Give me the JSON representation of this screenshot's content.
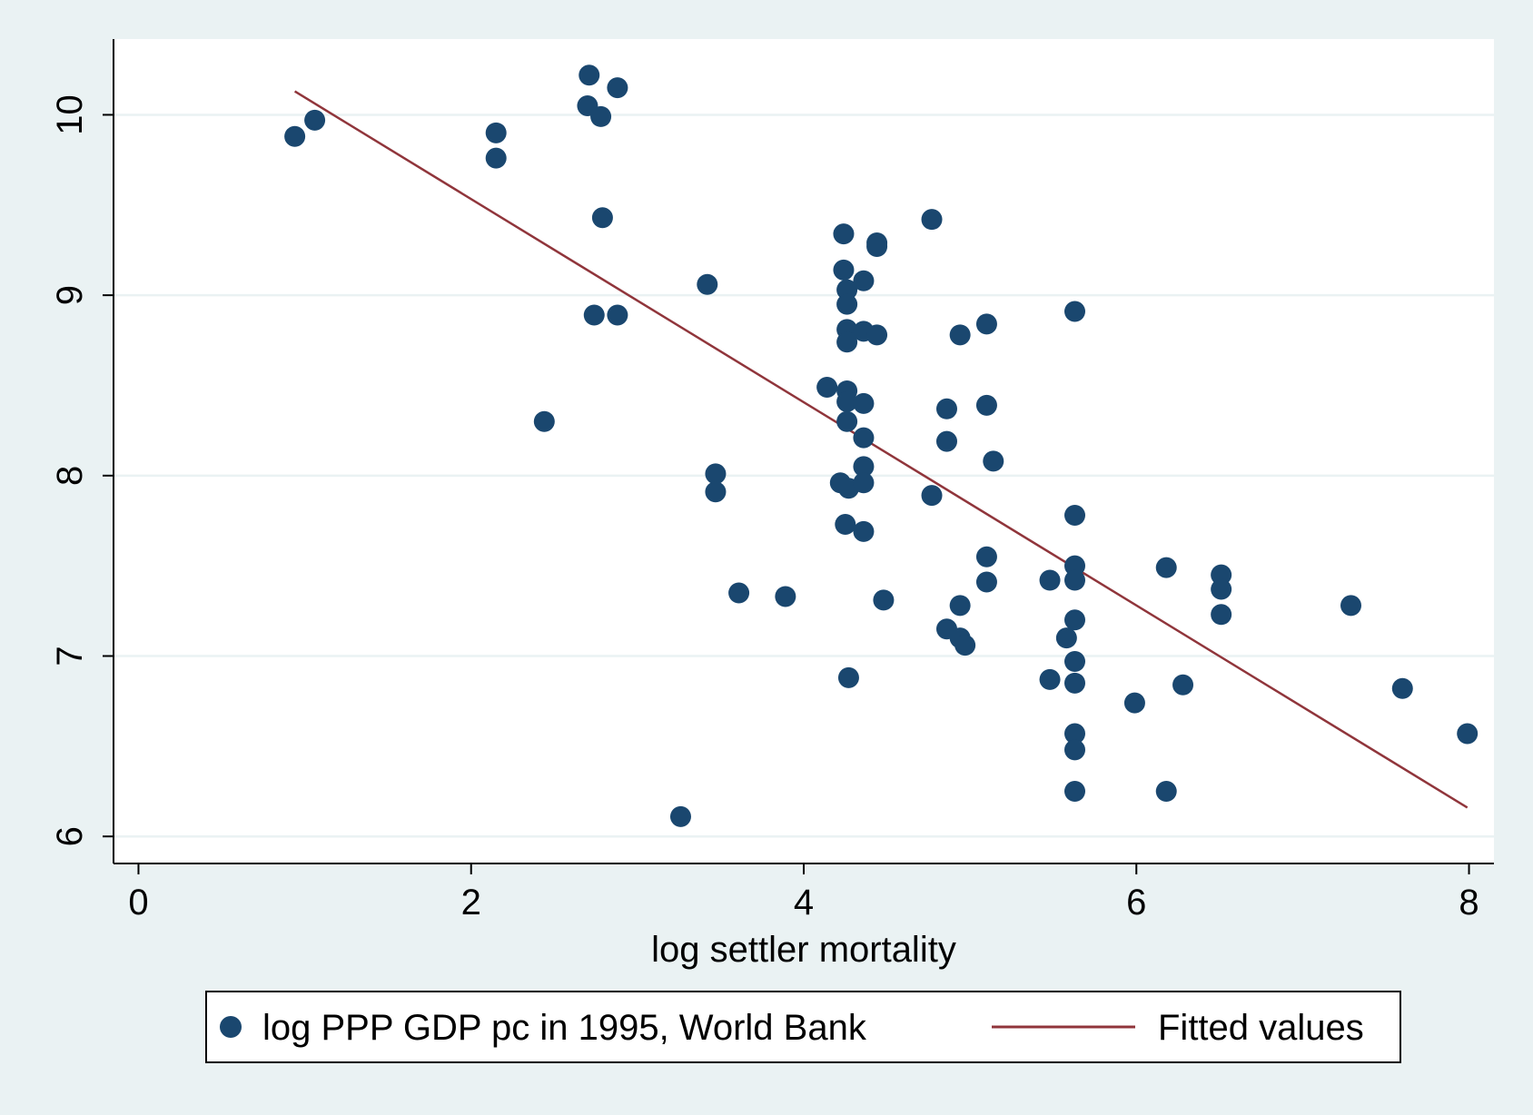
{
  "chart_data": {
    "type": "scatter",
    "xlabel": "log settler mortality",
    "ylabel": "",
    "xlim": [
      -0.15,
      8.15
    ],
    "ylim": [
      5.85,
      10.42
    ],
    "xticks": [
      0,
      2,
      4,
      6,
      8
    ],
    "yticks": [
      6,
      7,
      8,
      9,
      10
    ],
    "grid": "horizontal",
    "legend_position": "bottom",
    "colors": {
      "background": "#eaf2f3",
      "plot_background": "#ffffff",
      "marker": "#1a476f",
      "fitted_line": "#90353b",
      "grid": "#eaf2f3",
      "axis": "#000000"
    },
    "series": [
      {
        "name": "log PPP GDP pc in 1995, World Bank",
        "kind": "scatter",
        "points": [
          [
            0.94,
            9.88
          ],
          [
            1.06,
            9.97
          ],
          [
            2.15,
            9.9
          ],
          [
            2.15,
            9.76
          ],
          [
            2.44,
            8.3
          ],
          [
            2.71,
            10.22
          ],
          [
            2.7,
            10.05
          ],
          [
            2.78,
            9.99
          ],
          [
            2.88,
            10.15
          ],
          [
            2.79,
            9.43
          ],
          [
            2.74,
            8.89
          ],
          [
            2.88,
            8.89
          ],
          [
            3.26,
            6.11
          ],
          [
            3.42,
            9.06
          ],
          [
            3.47,
            8.01
          ],
          [
            3.47,
            7.91
          ],
          [
            3.61,
            7.35
          ],
          [
            3.89,
            7.33
          ],
          [
            4.14,
            8.49
          ],
          [
            4.24,
            9.34
          ],
          [
            4.24,
            9.14
          ],
          [
            4.26,
            9.03
          ],
          [
            4.26,
            8.95
          ],
          [
            4.26,
            8.81
          ],
          [
            4.26,
            8.74
          ],
          [
            4.26,
            8.47
          ],
          [
            4.26,
            8.41
          ],
          [
            4.26,
            8.3
          ],
          [
            4.22,
            7.96
          ],
          [
            4.27,
            7.93
          ],
          [
            4.25,
            7.73
          ],
          [
            4.27,
            6.88
          ],
          [
            4.36,
            9.08
          ],
          [
            4.36,
            8.8
          ],
          [
            4.36,
            8.4
          ],
          [
            4.36,
            8.21
          ],
          [
            4.36,
            8.05
          ],
          [
            4.36,
            7.96
          ],
          [
            4.36,
            7.69
          ],
          [
            4.44,
            9.29
          ],
          [
            4.44,
            9.27
          ],
          [
            4.44,
            8.78
          ],
          [
            4.48,
            7.31
          ],
          [
            4.77,
            9.42
          ],
          [
            4.77,
            7.89
          ],
          [
            4.86,
            8.37
          ],
          [
            4.86,
            8.19
          ],
          [
            4.86,
            7.15
          ],
          [
            4.94,
            8.78
          ],
          [
            4.94,
            7.28
          ],
          [
            4.94,
            7.1
          ],
          [
            4.97,
            7.06
          ],
          [
            5.1,
            8.84
          ],
          [
            5.1,
            8.39
          ],
          [
            5.14,
            8.08
          ],
          [
            5.1,
            7.55
          ],
          [
            5.1,
            7.41
          ],
          [
            5.48,
            7.42
          ],
          [
            5.48,
            6.87
          ],
          [
            5.58,
            7.1
          ],
          [
            5.63,
            8.91
          ],
          [
            5.63,
            7.78
          ],
          [
            5.63,
            7.5
          ],
          [
            5.63,
            7.42
          ],
          [
            5.63,
            7.2
          ],
          [
            5.63,
            6.97
          ],
          [
            5.63,
            6.85
          ],
          [
            5.63,
            6.57
          ],
          [
            5.63,
            6.48
          ],
          [
            5.63,
            6.25
          ],
          [
            5.99,
            6.74
          ],
          [
            6.18,
            7.49
          ],
          [
            6.18,
            6.25
          ],
          [
            6.28,
            6.84
          ],
          [
            6.51,
            7.45
          ],
          [
            6.51,
            7.37
          ],
          [
            6.51,
            7.23
          ],
          [
            7.29,
            7.28
          ],
          [
            7.6,
            6.82
          ],
          [
            7.99,
            6.57
          ]
        ]
      },
      {
        "name": "Fitted values",
        "kind": "line",
        "points": [
          [
            0.94,
            10.13
          ],
          [
            7.99,
            6.16
          ]
        ]
      }
    ]
  }
}
